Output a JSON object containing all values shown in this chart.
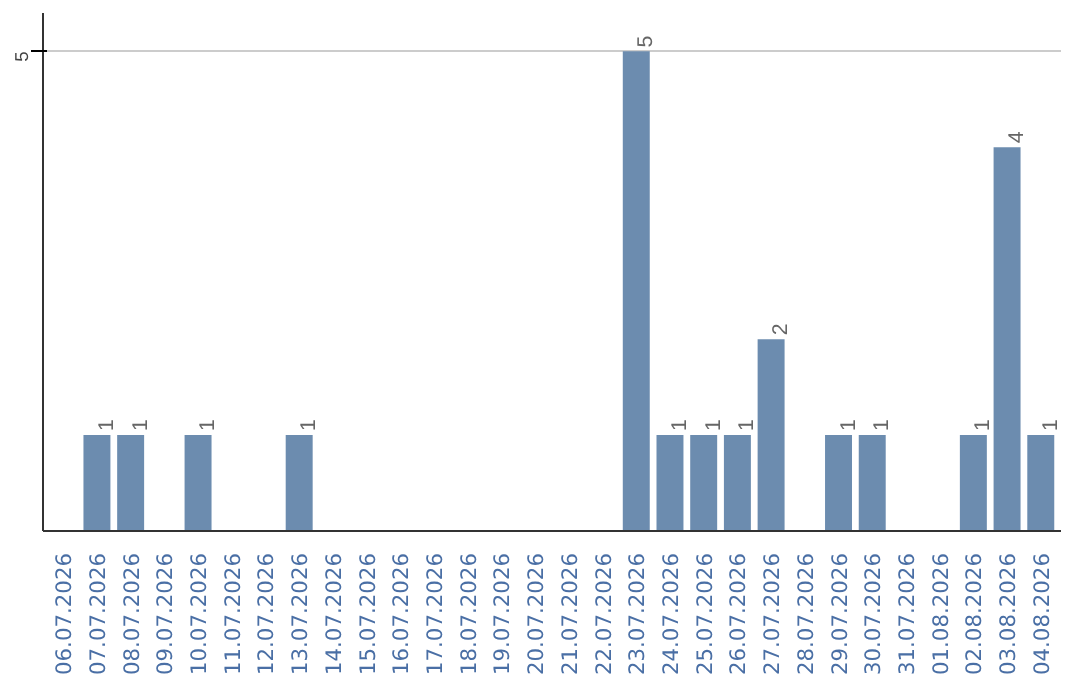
{
  "chart_data": {
    "type": "bar",
    "categories": [
      "06.07.2026",
      "07.07.2026",
      "08.07.2026",
      "09.07.2026",
      "10.07.2026",
      "11.07.2026",
      "12.07.2026",
      "13.07.2026",
      "14.07.2026",
      "15.07.2026",
      "16.07.2026",
      "17.07.2026",
      "18.07.2026",
      "19.07.2026",
      "20.07.2026",
      "21.07.2026",
      "22.07.2026",
      "23.07.2026",
      "24.07.2026",
      "25.07.2026",
      "26.07.2026",
      "27.07.2026",
      "28.07.2026",
      "29.07.2026",
      "30.07.2026",
      "31.07.2026",
      "01.08.2026",
      "02.08.2026",
      "03.08.2026",
      "04.08.2026"
    ],
    "values": [
      0,
      1,
      1,
      0,
      1,
      0,
      0,
      1,
      0,
      0,
      0,
      0,
      0,
      0,
      0,
      0,
      0,
      5,
      1,
      1,
      1,
      2,
      0,
      1,
      1,
      0,
      0,
      1,
      4,
      1
    ],
    "value_labels": [
      null,
      "1",
      "1",
      null,
      "1",
      null,
      null,
      "1",
      null,
      null,
      null,
      null,
      null,
      null,
      null,
      null,
      null,
      "5",
      "1",
      "1",
      "1",
      "2",
      null,
      "1",
      "1",
      null,
      null,
      "1",
      "4",
      "1"
    ],
    "color": "#6c8caf",
    "ylim": [
      0,
      5.4
    ],
    "yticks": [
      5
    ],
    "grid": "y"
  }
}
